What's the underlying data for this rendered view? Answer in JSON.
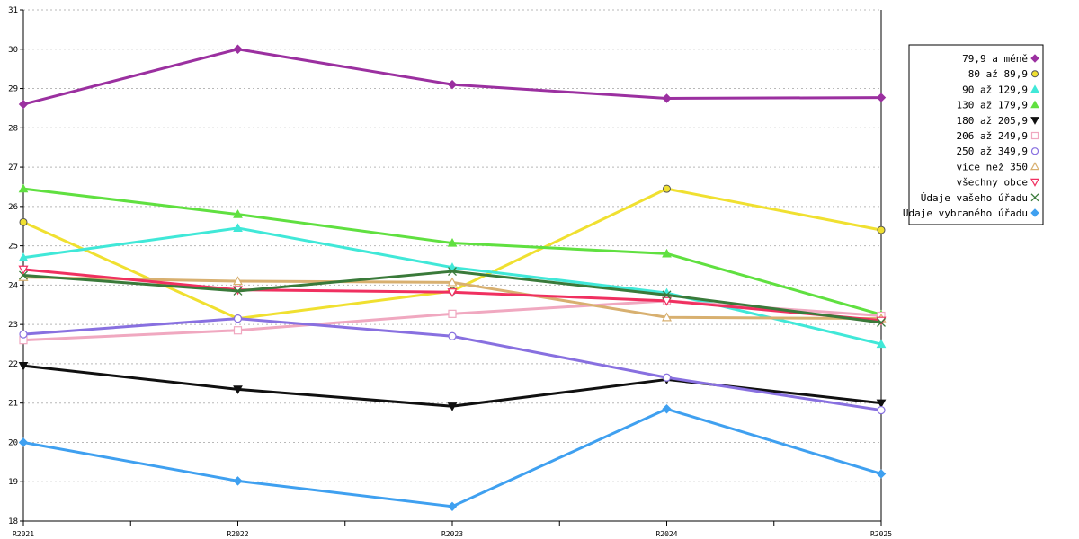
{
  "chart_data": {
    "type": "line",
    "title": "",
    "xlabel": "",
    "ylabel": "",
    "categories": [
      "R2021",
      "R2022",
      "R2023",
      "R2024",
      "R2025"
    ],
    "ylim": [
      18,
      31
    ],
    "yticks": [
      18,
      19,
      20,
      21,
      22,
      23,
      24,
      25,
      26,
      27,
      28,
      29,
      30,
      31
    ],
    "grid": true,
    "legend_position": "top-right",
    "series": [
      {
        "name": "79,9 a méně",
        "values": [
          28.6,
          30.0,
          29.1,
          28.75,
          28.77
        ],
        "color": "#9b30a0",
        "marker": "diamond"
      },
      {
        "name": "80 až 89,9",
        "values": [
          25.6,
          23.15,
          23.85,
          26.45,
          25.4
        ],
        "color": "#f0e030",
        "marker": "circle"
      },
      {
        "name": "90 až 129,9",
        "values": [
          24.7,
          25.45,
          24.45,
          23.8,
          22.5
        ],
        "color": "#40e8d8",
        "marker": "triangle-up"
      },
      {
        "name": "130 až 179,9",
        "values": [
          26.45,
          25.8,
          25.07,
          24.8,
          23.25
        ],
        "color": "#60e040",
        "marker": "triangle-up"
      },
      {
        "name": "180 až 205,9",
        "values": [
          21.95,
          21.35,
          20.92,
          21.6,
          21.0
        ],
        "color": "#101010",
        "marker": "triangle-down"
      },
      {
        "name": "206 až 249,9",
        "values": [
          22.6,
          22.85,
          23.27,
          23.6,
          23.22
        ],
        "color": "#f0a8c0",
        "marker": "square-open"
      },
      {
        "name": "250 až 349,9",
        "values": [
          22.75,
          23.15,
          22.7,
          21.65,
          20.82
        ],
        "color": "#8870e0",
        "marker": "circle-open"
      },
      {
        "name": "více než 350",
        "values": [
          24.2,
          24.1,
          24.07,
          23.18,
          23.15
        ],
        "color": "#d8b070",
        "marker": "triangle-up-open"
      },
      {
        "name": "všechny obce",
        "values": [
          24.4,
          23.88,
          23.82,
          23.6,
          23.1
        ],
        "color": "#f03060",
        "marker": "triangle-down-open"
      },
      {
        "name": "Údaje vašeho úřadu",
        "values": [
          24.25,
          23.85,
          24.35,
          23.75,
          23.05
        ],
        "color": "#3a7a3a",
        "marker": "cross"
      },
      {
        "name": "Údaje vybraného úřadu",
        "values": [
          20.0,
          19.02,
          18.37,
          20.85,
          19.2
        ],
        "color": "#3fa0f0",
        "marker": "diamond"
      }
    ]
  }
}
